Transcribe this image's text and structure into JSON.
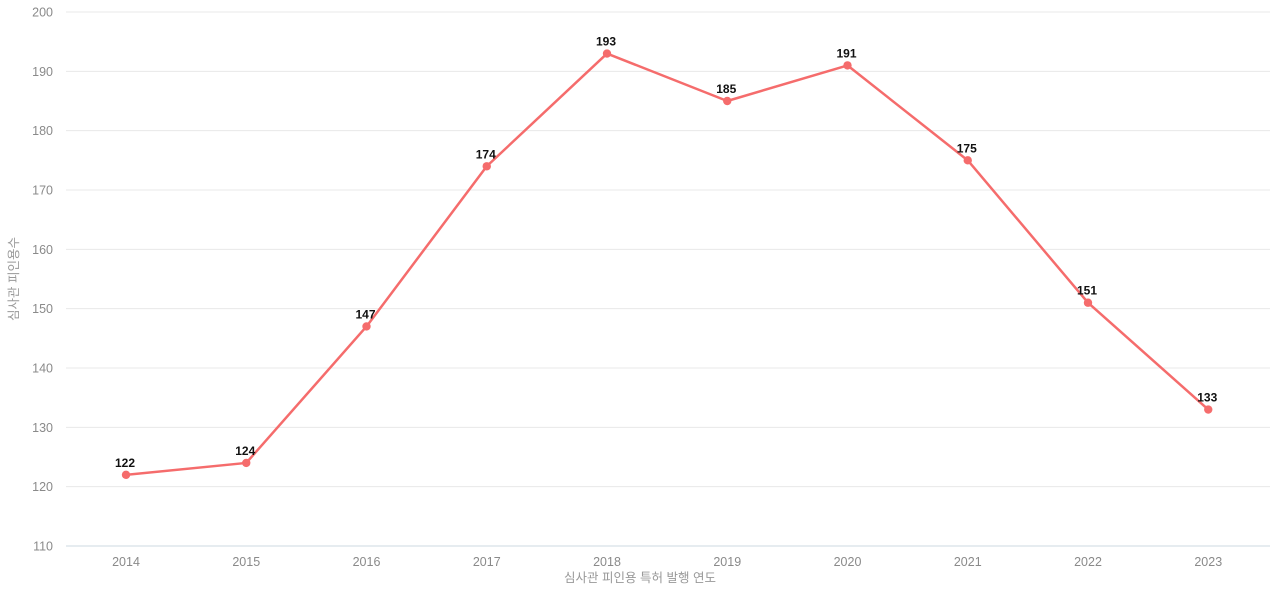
{
  "chart_data": {
    "type": "line",
    "categories": [
      "2014",
      "2015",
      "2016",
      "2017",
      "2018",
      "2019",
      "2020",
      "2021",
      "2022",
      "2023"
    ],
    "values": [
      122,
      124,
      147,
      174,
      193,
      185,
      191,
      175,
      151,
      133
    ],
    "title": "",
    "xlabel": "심사관 피인용 특허 발행 연도",
    "ylabel": "심사관 피인용수",
    "ylim": [
      110,
      200
    ],
    "ytick_step": 10,
    "yticks": [
      110,
      120,
      130,
      140,
      150,
      160,
      170,
      180,
      190,
      200
    ],
    "grid": "horizontal",
    "legend": "none",
    "point_labels": true,
    "colors": {
      "line": "#F56C6C",
      "point": "#F56C6C",
      "grid": "#e8e8e8",
      "axis_line": "#ccd8e2",
      "tick_label": "#8a8a8a",
      "axis_title": "#999999",
      "value_label": "#111111",
      "background": "#ffffff"
    }
  }
}
